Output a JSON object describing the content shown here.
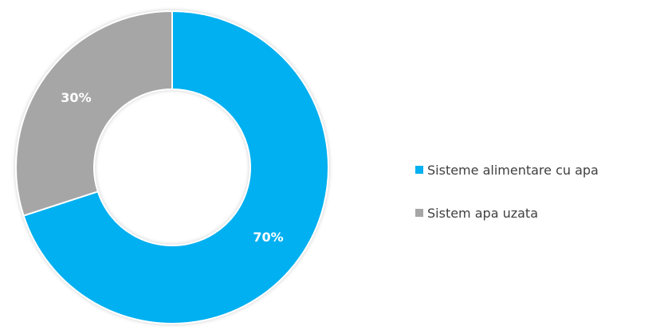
{
  "chart_data": {
    "type": "pie",
    "variant": "donut",
    "slices": [
      {
        "label": "Sisteme alimentare cu apa",
        "value": 70,
        "display": "70%",
        "color": "#00b0f0"
      },
      {
        "label": "Sistem apa uzata",
        "value": 30,
        "display": "30%",
        "color": "#a6a6a6"
      }
    ],
    "legend_position": "right",
    "label_color": "#ffffff",
    "legend_text_color": "#404040"
  }
}
